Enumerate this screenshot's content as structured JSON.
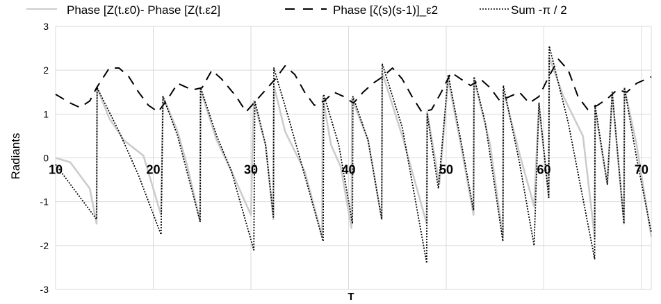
{
  "chart_data": {
    "type": "line",
    "xlabel": "T",
    "ylabel": "Radiants",
    "xlim": [
      10,
      71
    ],
    "ylim": [
      -3,
      3
    ],
    "x_ticks": [
      "10",
      "20",
      "30",
      "40",
      "50",
      "60",
      "70"
    ],
    "y_ticks": [
      "3",
      "2",
      "1",
      "0",
      "-1",
      "-2",
      "-3"
    ],
    "grid": true,
    "legend_position": "top",
    "series": [
      {
        "name": "Phase [Z(t.ε0)- Phase [Z(t.ε2]",
        "style": "solid",
        "color": "#cccccc",
        "points": [
          [
            10,
            0.0
          ],
          [
            11.5,
            -0.1
          ],
          [
            13.5,
            -0.7
          ],
          [
            14.2,
            -1.5
          ],
          [
            14.25,
            1.6
          ],
          [
            15.5,
            0.9
          ],
          [
            17,
            0.4
          ],
          [
            19,
            0.05
          ],
          [
            20.8,
            -1.3
          ],
          [
            21.0,
            1.4
          ],
          [
            22.5,
            0.6
          ],
          [
            23.5,
            -0.2
          ],
          [
            24.8,
            -1.45
          ],
          [
            24.85,
            1.55
          ],
          [
            26.5,
            0.4
          ],
          [
            28,
            -0.3
          ],
          [
            30.0,
            -1.3
          ],
          [
            30.3,
            1.3
          ],
          [
            31.5,
            0.3
          ],
          [
            32.3,
            -1.4
          ],
          [
            32.35,
            1.65
          ],
          [
            33.5,
            0.6
          ],
          [
            35.5,
            -0.3
          ],
          [
            37.3,
            -1.8
          ],
          [
            37.35,
            1.4
          ],
          [
            38.2,
            0.3
          ],
          [
            39.2,
            -0.2
          ],
          [
            40.3,
            -1.6
          ],
          [
            40.35,
            1.35
          ],
          [
            42.0,
            0.4
          ],
          [
            43.4,
            -1.4
          ],
          [
            43.45,
            1.95
          ],
          [
            45.5,
            0.5
          ],
          [
            48.0,
            -1.5
          ],
          [
            48.05,
            1.05
          ],
          [
            49.3,
            -0.6
          ],
          [
            50.2,
            1.8
          ],
          [
            51.5,
            0.3
          ],
          [
            52.8,
            -1.3
          ],
          [
            52.85,
            1.8
          ],
          [
            54.5,
            0.3
          ],
          [
            55.8,
            -1.8
          ],
          [
            55.85,
            1.55
          ],
          [
            57.5,
            0.1
          ],
          [
            59.0,
            -1.1
          ],
          [
            59.5,
            1.2
          ],
          [
            60.5,
            -0.9
          ],
          [
            60.55,
            2.3
          ],
          [
            62.0,
            1.4
          ],
          [
            64.0,
            0.5
          ],
          [
            65.2,
            -1.8
          ],
          [
            65.25,
            1.1
          ],
          [
            66.5,
            -0.6
          ],
          [
            67.0,
            1.45
          ],
          [
            68.2,
            -1.5
          ],
          [
            68.25,
            1.6
          ],
          [
            69.5,
            0.3
          ],
          [
            71.0,
            -1.8
          ]
        ]
      },
      {
        "name": "Phase [ζ(s)(s-1)]_ε2",
        "style": "dashed",
        "color": "#000000",
        "points": [
          [
            10,
            1.45
          ],
          [
            11.5,
            1.25
          ],
          [
            12.5,
            1.15
          ],
          [
            13.5,
            1.3
          ],
          [
            14.2,
            1.6
          ],
          [
            15.5,
            2.05
          ],
          [
            16.5,
            2.05
          ],
          [
            17.5,
            1.85
          ],
          [
            18.5,
            1.5
          ],
          [
            19.5,
            1.2
          ],
          [
            20.5,
            1.05
          ],
          [
            21.5,
            1.35
          ],
          [
            22.5,
            1.7
          ],
          [
            24,
            1.55
          ],
          [
            25,
            1.6
          ],
          [
            26,
            2.0
          ],
          [
            27,
            1.8
          ],
          [
            28.5,
            1.4
          ],
          [
            29.5,
            1.05
          ],
          [
            30.5,
            1.3
          ],
          [
            31.5,
            1.55
          ],
          [
            32.5,
            1.8
          ],
          [
            33.5,
            2.1
          ],
          [
            34.5,
            1.9
          ],
          [
            35.5,
            1.5
          ],
          [
            36.5,
            1.2
          ],
          [
            37.5,
            1.3
          ],
          [
            38.5,
            1.5
          ],
          [
            39.5,
            1.4
          ],
          [
            40.5,
            1.25
          ],
          [
            41.5,
            1.5
          ],
          [
            42.5,
            1.7
          ],
          [
            43.5,
            1.85
          ],
          [
            44.5,
            2.05
          ],
          [
            45.5,
            1.8
          ],
          [
            46.5,
            1.4
          ],
          [
            47.5,
            1.05
          ],
          [
            48.5,
            1.1
          ],
          [
            49.5,
            1.5
          ],
          [
            50.5,
            1.95
          ],
          [
            51.5,
            1.8
          ],
          [
            52.5,
            1.65
          ],
          [
            53.5,
            1.8
          ],
          [
            54.5,
            1.6
          ],
          [
            55.5,
            1.3
          ],
          [
            56.5,
            1.4
          ],
          [
            57.5,
            1.5
          ],
          [
            58.5,
            1.25
          ],
          [
            59.5,
            1.4
          ],
          [
            60.5,
            1.85
          ],
          [
            61.5,
            2.25
          ],
          [
            62.5,
            2.0
          ],
          [
            63.5,
            1.4
          ],
          [
            64.5,
            1.1
          ],
          [
            65.5,
            1.2
          ],
          [
            66.5,
            1.35
          ],
          [
            67.5,
            1.55
          ],
          [
            68.5,
            1.5
          ],
          [
            69.5,
            1.7
          ],
          [
            70.5,
            1.8
          ],
          [
            71,
            1.85
          ]
        ]
      },
      {
        "name": "Sum -π / 2",
        "style": "dotted",
        "color": "#000000",
        "points": [
          [
            10,
            -0.15
          ],
          [
            12,
            -0.75
          ],
          [
            14.2,
            -1.4
          ],
          [
            14.25,
            1.6
          ],
          [
            16.5,
            0.6
          ],
          [
            18.5,
            -0.4
          ],
          [
            20.8,
            -1.75
          ],
          [
            21.0,
            1.4
          ],
          [
            22.5,
            0.5
          ],
          [
            24.8,
            -1.45
          ],
          [
            24.85,
            1.6
          ],
          [
            26.5,
            0.5
          ],
          [
            28,
            -0.3
          ],
          [
            30.3,
            -2.1
          ],
          [
            30.4,
            1.3
          ],
          [
            31.5,
            0.3
          ],
          [
            32.3,
            -1.35
          ],
          [
            32.35,
            2.05
          ],
          [
            34,
            0.8
          ],
          [
            37.4,
            -1.9
          ],
          [
            37.45,
            1.45
          ],
          [
            39,
            0.3
          ],
          [
            40.4,
            -1.5
          ],
          [
            40.45,
            1.4
          ],
          [
            42,
            0.4
          ],
          [
            43.4,
            -1.4
          ],
          [
            43.45,
            2.15
          ],
          [
            45.5,
            0.7
          ],
          [
            48.0,
            -2.4
          ],
          [
            48.05,
            1.0
          ],
          [
            49.2,
            -0.7
          ],
          [
            50.2,
            1.9
          ],
          [
            51.5,
            0.4
          ],
          [
            52.8,
            -1.2
          ],
          [
            52.85,
            1.85
          ],
          [
            54,
            0.8
          ],
          [
            55.8,
            -1.9
          ],
          [
            55.85,
            1.65
          ],
          [
            57.5,
            -0.1
          ],
          [
            59.0,
            -2.0
          ],
          [
            59.5,
            1.25
          ],
          [
            60.5,
            -0.9
          ],
          [
            60.55,
            2.55
          ],
          [
            62.5,
            0.8
          ],
          [
            65.2,
            -2.3
          ],
          [
            65.25,
            1.2
          ],
          [
            66.5,
            -0.6
          ],
          [
            67.0,
            1.5
          ],
          [
            68.2,
            -1.5
          ],
          [
            68.25,
            1.6
          ],
          [
            69.5,
            0.0
          ],
          [
            71.0,
            -1.7
          ]
        ]
      }
    ]
  }
}
